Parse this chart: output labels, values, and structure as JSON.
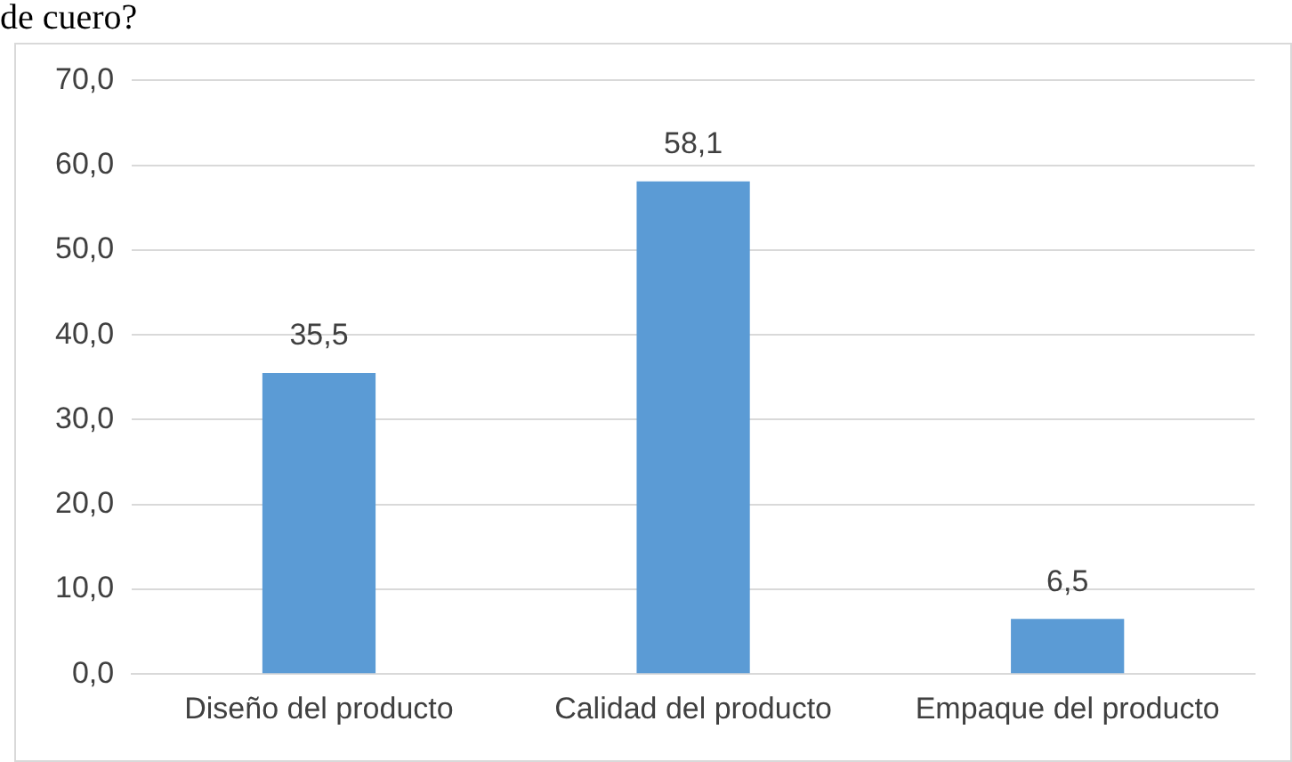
{
  "chart_data": {
    "type": "bar",
    "title": "de cuero?",
    "categories": [
      "Diseño del producto",
      "Calidad del producto",
      "Empaque del producto"
    ],
    "values": [
      35.5,
      58.1,
      6.5
    ],
    "color": "#5b9bd5",
    "value_labels": [
      "35,5",
      "58,1",
      "6,5"
    ],
    "ylim": [
      0,
      70
    ],
    "yticks": [
      {
        "value": 0,
        "label": "0,0"
      },
      {
        "value": 10,
        "label": "10,0"
      },
      {
        "value": 20,
        "label": "20,0"
      },
      {
        "value": 30,
        "label": "30,0"
      },
      {
        "value": 40,
        "label": "40,0"
      },
      {
        "value": 50,
        "label": "50,0"
      },
      {
        "value": 60,
        "label": "60,0"
      },
      {
        "value": 70,
        "label": "70,0"
      }
    ],
    "grid": "y",
    "legend": false
  }
}
